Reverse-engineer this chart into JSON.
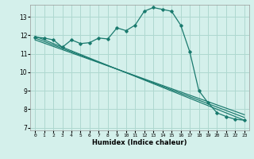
{
  "xlabel": "Humidex (Indice chaleur)",
  "bg_color": "#d4f0eb",
  "grid_color": "#aed8d0",
  "line_color": "#1a7a6e",
  "xlim": [
    -0.5,
    23.5
  ],
  "ylim": [
    6.85,
    13.65
  ],
  "yticks": [
    7,
    8,
    9,
    10,
    11,
    12,
    13
  ],
  "xticks": [
    0,
    1,
    2,
    3,
    4,
    5,
    6,
    7,
    8,
    9,
    10,
    11,
    12,
    13,
    14,
    15,
    16,
    17,
    18,
    19,
    20,
    21,
    22,
    23
  ],
  "series1_x": [
    0,
    1,
    2,
    3,
    4,
    5,
    6,
    7,
    8,
    9,
    10,
    11,
    12,
    13,
    14,
    15,
    16,
    17,
    18,
    19,
    20,
    21,
    22,
    23
  ],
  "series1_y": [
    11.9,
    11.85,
    11.75,
    11.35,
    11.75,
    11.55,
    11.6,
    11.85,
    11.8,
    12.4,
    12.25,
    12.55,
    13.3,
    13.5,
    13.4,
    13.3,
    12.55,
    11.1,
    9.0,
    8.35,
    7.8,
    7.6,
    7.45,
    7.4
  ],
  "line2_x0": 0,
  "line2_y0": 11.95,
  "line2_x1": 23,
  "line2_y1": 7.4,
  "line3_x0": 0,
  "line3_y0": 11.85,
  "line3_x1": 23,
  "line3_y1": 7.55,
  "line4_x0": 0,
  "line4_y0": 11.75,
  "line4_x1": 23,
  "line4_y1": 7.7
}
